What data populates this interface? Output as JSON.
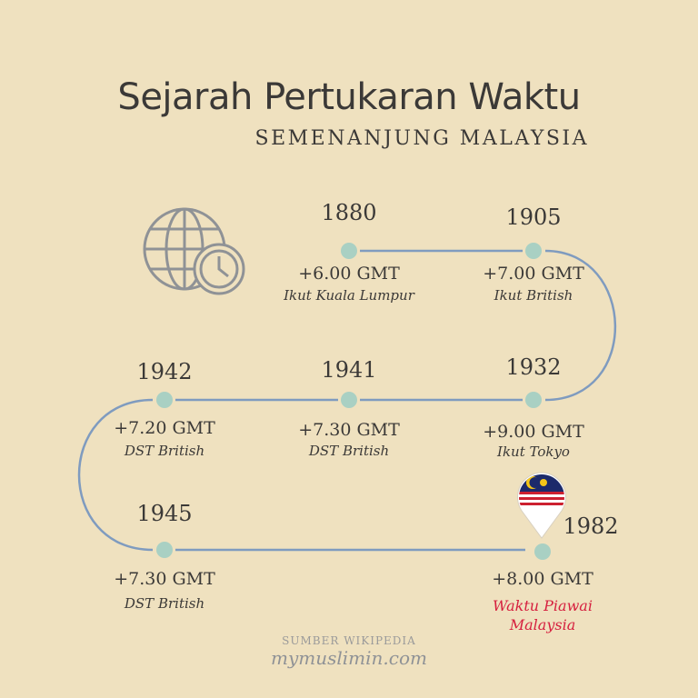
{
  "title": "Sejarah Pertukaran Waktu",
  "subtitle": "SEMENANJUNG MALAYSIA",
  "colors": {
    "background": "#efe1bf",
    "line": "#7f9bbf",
    "dot": "#a9d0c3",
    "accent": "#d6203f",
    "text": "#3b3937"
  },
  "icons": [
    "globe-clock-icon",
    "malaysia-flag-pin-icon"
  ],
  "timeline": [
    {
      "year": "1880",
      "gmt": "+6.00 GMT",
      "note": "Ikut Kuala Lumpur"
    },
    {
      "year": "1905",
      "gmt": "+7.00 GMT",
      "note": "Ikut British"
    },
    {
      "year": "1932",
      "gmt": "+9.00 GMT",
      "note": "Ikut Tokyo"
    },
    {
      "year": "1941",
      "gmt": "+7.30 GMT",
      "note": "DST British"
    },
    {
      "year": "1942",
      "gmt": "+7.20 GMT",
      "note": "DST British"
    },
    {
      "year": "1945",
      "gmt": "+7.30 GMT",
      "note": "DST British"
    },
    {
      "year": "1982",
      "gmt": "+8.00 GMT",
      "note": "Waktu Piawai",
      "note2": "Malaysia"
    }
  ],
  "footer": {
    "source": "SUMBER WIKIPEDIA",
    "brand": "mymuslimin.com"
  }
}
